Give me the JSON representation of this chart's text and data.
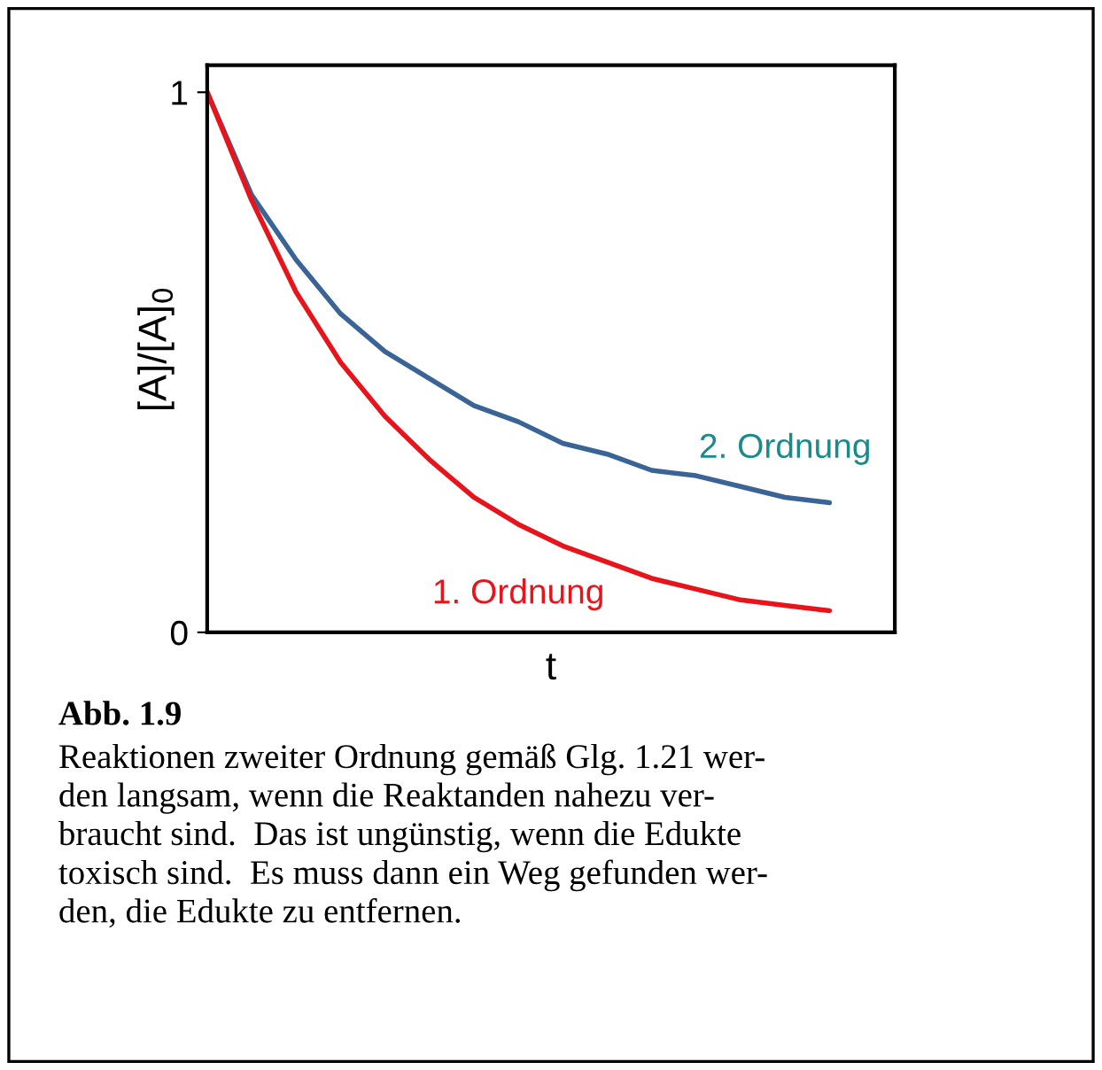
{
  "chart_data": {
    "type": "line",
    "ylabel": "[A]/[A]$_{0}$",
    "xlabel": "t",
    "categories": [
      null,
      null,
      null,
      null,
      null,
      null,
      null,
      null,
      null,
      null,
      null,
      null,
      null,
      null,
      null
    ],
    "series": [
      {
        "name": "2. Ordnung",
        "color": "#3a6396",
        "values": [
          1,
          0.81,
          0.69,
          0.59,
          0.52,
          0.47,
          0.42,
          0.39,
          0.35,
          0.33,
          0.3,
          0.29,
          0.27,
          0.25,
          0.24
        ]
      },
      {
        "name": "1. Ordnung",
        "color": "#e8141c",
        "values": [
          1,
          0.8,
          0.63,
          0.5,
          0.4,
          0.32,
          0.25,
          0.2,
          0.16,
          0.13,
          0.1,
          0.08,
          0.06,
          0.05,
          0.04
        ]
      }
    ],
    "ylim": [
      0,
      1.05
    ],
    "yticks": [
      0,
      1
    ],
    "tick_labels": "y",
    "grid": false,
    "legend": false,
    "annotations": [
      "Abb. 1.9",
      "Reaktionen zweiter Ordnung gemäß Glg. 1.21 wer-\nden langsam, wenn die Reaktanden nahezu ver-\nbraucht sind.  Das ist ungünstig, wenn die Edukte\ntoxisch sind.  Es muss dann ein Weg gefunden wer-\nden, die Edukte zu entfernen."
    ]
  }
}
